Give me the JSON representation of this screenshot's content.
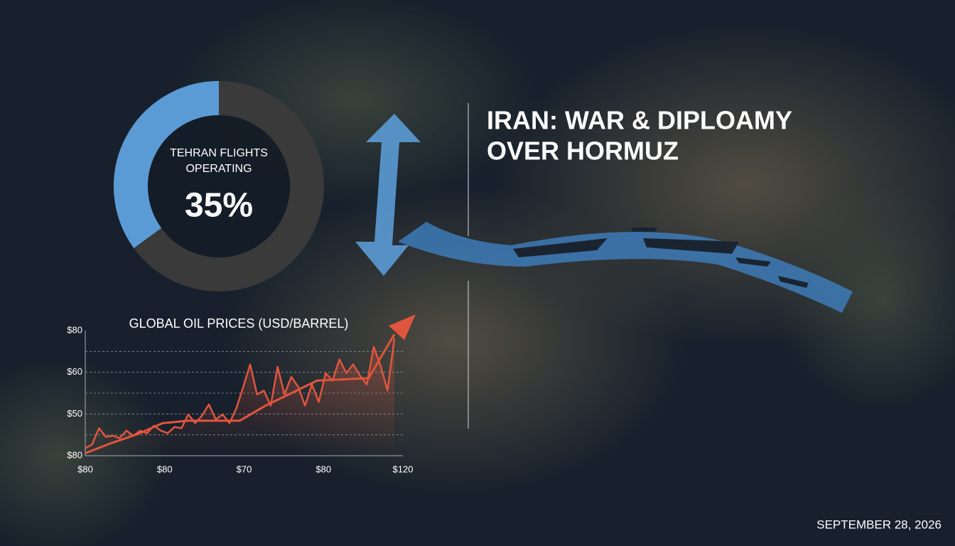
{
  "header": {
    "title_lines": [
      "IRAN: WAR & DIPLOAMY",
      "OVER HORMUZ"
    ]
  },
  "date": "SEPTEMBER 28, 2026",
  "chart_data": [
    {
      "type": "donut",
      "title_lines": [
        "TEHRAN FLIGHTS",
        "OPERATING"
      ],
      "value": 35,
      "value_label": "35%",
      "color": "#5b9bd5",
      "rest_color": "#3a3a3a"
    },
    {
      "type": "line",
      "title": "GLOBAL OIL PRICES (USD/BARREL)",
      "y_labels": [
        "$80",
        "$50",
        "$60",
        "$80"
      ],
      "x_labels": [
        "$80",
        "$80",
        "$70",
        "$80",
        "$120"
      ],
      "ylim": [
        0,
        100
      ],
      "grid": true,
      "series": [
        {
          "color": "#e0553d",
          "values": [
            6,
            9,
            22,
            15,
            16,
            14,
            20,
            16,
            20,
            18,
            24,
            20,
            18,
            23,
            22,
            33,
            26,
            32,
            41,
            29,
            33,
            26,
            38,
            55,
            73,
            49,
            52,
            40,
            71,
            49,
            63,
            55,
            40,
            57,
            43,
            66,
            60,
            77,
            66,
            73,
            64,
            57,
            87,
            72,
            52,
            94
          ]
        },
        {
          "color": "#e0553d",
          "values": [
            2,
            10,
            17,
            26,
            28,
            28,
            28,
            40,
            50,
            60,
            61,
            62,
            97
          ]
        }
      ]
    }
  ]
}
